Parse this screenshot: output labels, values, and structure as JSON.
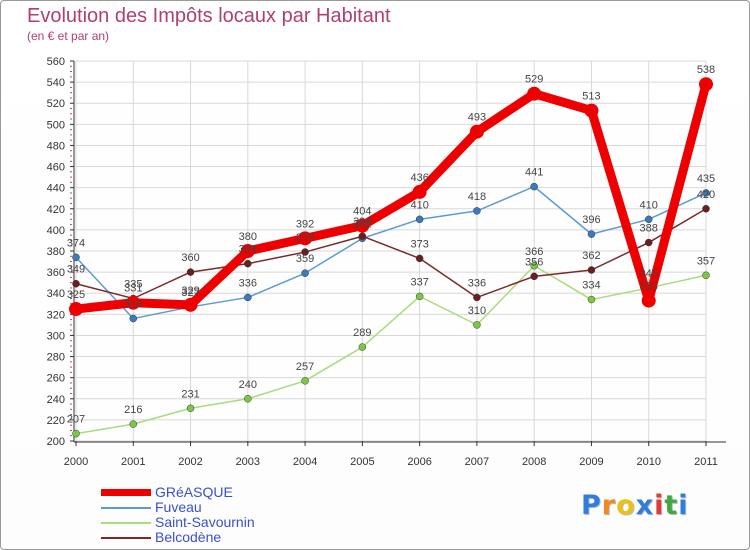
{
  "title": "Evolution des Impôts locaux par Habitant",
  "subtitle": "(en € et par an)",
  "colors": {
    "title": "#b14070",
    "grid": "#d8d8d8",
    "axis": "#333333",
    "axis_minor": "#c04070"
  },
  "chart_data": {
    "type": "line",
    "title": "Evolution des Impôts locaux par Habitant",
    "ylabel": "(en € et par an)",
    "xlabel": "",
    "x": [
      "2000",
      "2001",
      "2002",
      "2003",
      "2004",
      "2005",
      "2006",
      "2007",
      "2008",
      "2009",
      "2010",
      "2011"
    ],
    "ylim": [
      200,
      560
    ],
    "yticks": [
      200,
      220,
      240,
      260,
      280,
      300,
      320,
      340,
      360,
      380,
      400,
      420,
      440,
      460,
      480,
      500,
      520,
      540,
      560
    ],
    "grid": true,
    "legend_position": "bottom-left",
    "series": [
      {
        "name": "GRéASQUE",
        "color": "#ee0000",
        "marker": "#ee0000",
        "emphasis": true,
        "values": [
          325,
          331,
          329,
          380,
          392,
          404,
          436,
          493,
          529,
          513,
          333,
          538
        ]
      },
      {
        "name": "Fuveau",
        "color": "#5b9bd5",
        "marker": "#3a7bbf",
        "emphasis": false,
        "values": [
          374,
          316,
          327,
          336,
          359,
          392,
          410,
          418,
          441,
          396,
          410,
          435
        ]
      },
      {
        "name": "Saint-Savournin",
        "color": "#a8dc7c",
        "marker": "#7cc844",
        "emphasis": false,
        "values": [
          207,
          216,
          231,
          240,
          257,
          289,
          337,
          310,
          366,
          334,
          345,
          357
        ]
      },
      {
        "name": "Belcodène",
        "color": "#7a2a2a",
        "marker": "#6a1e1e",
        "emphasis": false,
        "values": [
          349,
          335,
          360,
          368,
          379,
          394,
          373,
          336,
          356,
          362,
          388,
          420
        ]
      }
    ],
    "data_labels": [
      {
        "series": "GRéASQUE",
        "x": "2000",
        "text": "325"
      },
      {
        "series": "GRéASQUE",
        "x": "2001",
        "text": "331"
      },
      {
        "series": "GRéASQUE",
        "x": "2002",
        "text": "329"
      },
      {
        "series": "GRéASQUE",
        "x": "2003",
        "text": "380"
      },
      {
        "series": "GRéASQUE",
        "x": "2004",
        "text": "392"
      },
      {
        "series": "GRéASQUE",
        "x": "2005",
        "text": "404"
      },
      {
        "series": "GRéASQUE",
        "x": "2006",
        "text": "436"
      },
      {
        "series": "GRéASQUE",
        "x": "2007",
        "text": "493"
      },
      {
        "series": "GRéASQUE",
        "x": "2008",
        "text": "529"
      },
      {
        "series": "GRéASQUE",
        "x": "2009",
        "text": "513"
      },
      {
        "series": "GRéASQUE",
        "x": "2010",
        "text": "333"
      },
      {
        "series": "GRéASQUE",
        "x": "2011",
        "text": "538"
      },
      {
        "series": "Fuveau",
        "x": "2000",
        "text": "374"
      },
      {
        "series": "Fuveau",
        "x": "2001",
        "text": "316"
      },
      {
        "series": "Fuveau",
        "x": "2002",
        "text": "327"
      },
      {
        "series": "Fuveau",
        "x": "2003",
        "text": "336"
      },
      {
        "series": "Fuveau",
        "x": "2004",
        "text": "359"
      },
      {
        "series": "Fuveau",
        "x": "2005",
        "text": "392"
      },
      {
        "series": "Fuveau",
        "x": "2006",
        "text": "410"
      },
      {
        "series": "Fuveau",
        "x": "2007",
        "text": "418"
      },
      {
        "series": "Fuveau",
        "x": "2008",
        "text": "441"
      },
      {
        "series": "Fuveau",
        "x": "2009",
        "text": "396"
      },
      {
        "series": "Fuveau",
        "x": "2010",
        "text": "410"
      },
      {
        "series": "Fuveau",
        "x": "2011",
        "text": "435"
      },
      {
        "series": "Saint-Savournin",
        "x": "2000",
        "text": "207"
      },
      {
        "series": "Saint-Savournin",
        "x": "2001",
        "text": "216"
      },
      {
        "series": "Saint-Savournin",
        "x": "2002",
        "text": "231"
      },
      {
        "series": "Saint-Savournin",
        "x": "2003",
        "text": "240"
      },
      {
        "series": "Saint-Savournin",
        "x": "2004",
        "text": "257"
      },
      {
        "series": "Saint-Savournin",
        "x": "2005",
        "text": "289"
      },
      {
        "series": "Saint-Savournin",
        "x": "2006",
        "text": "337"
      },
      {
        "series": "Saint-Savournin",
        "x": "2007",
        "text": "310"
      },
      {
        "series": "Saint-Savournin",
        "x": "2008",
        "text": "366"
      },
      {
        "series": "Saint-Savournin",
        "x": "2009",
        "text": "334"
      },
      {
        "series": "Saint-Savournin",
        "x": "2010",
        "text": "345"
      },
      {
        "series": "Saint-Savournin",
        "x": "2011",
        "text": "357"
      },
      {
        "series": "Belcodène",
        "x": "2000",
        "text": "349"
      },
      {
        "series": "Belcodène",
        "x": "2001",
        "text": "335"
      },
      {
        "series": "Belcodène",
        "x": "2002",
        "text": "360"
      },
      {
        "series": "Belcodène",
        "x": "2003",
        "text": "368"
      },
      {
        "series": "Belcodène",
        "x": "2004",
        "text": "379"
      },
      {
        "series": "Belcodène",
        "x": "2005",
        "text": "394"
      },
      {
        "series": "Belcodène",
        "x": "2006",
        "text": "373"
      },
      {
        "series": "Belcodène",
        "x": "2007",
        "text": "336"
      },
      {
        "series": "Belcodène",
        "x": "2008",
        "text": "356"
      },
      {
        "series": "Belcodène",
        "x": "2009",
        "text": "362"
      },
      {
        "series": "Belcodène",
        "x": "2010",
        "text": "388"
      },
      {
        "series": "Belcodène",
        "x": "2011",
        "text": "420"
      }
    ]
  },
  "legend": [
    {
      "label": "GRéASQUE",
      "color": "#ee0000",
      "text_color": "#3a4fd0",
      "emphasis": true
    },
    {
      "label": "Fuveau",
      "color": "#5b9bd5",
      "text_color": "#3a4fd0",
      "emphasis": false
    },
    {
      "label": "Saint-Savournin",
      "color": "#a8dc7c",
      "text_color": "#3a4fd0",
      "emphasis": false
    },
    {
      "label": "Belcodène",
      "color": "#7a2a2a",
      "text_color": "#3a4fd0",
      "emphasis": false
    }
  ],
  "logo": {
    "letters": [
      "P",
      "r",
      "o",
      "x",
      "i",
      "t",
      "i"
    ],
    "colors": [
      "#2f7de1",
      "#f08a1c",
      "#e8c21a",
      "#2f7de1",
      "#e03a3a",
      "#3fa83f",
      "#2f7de1"
    ]
  }
}
